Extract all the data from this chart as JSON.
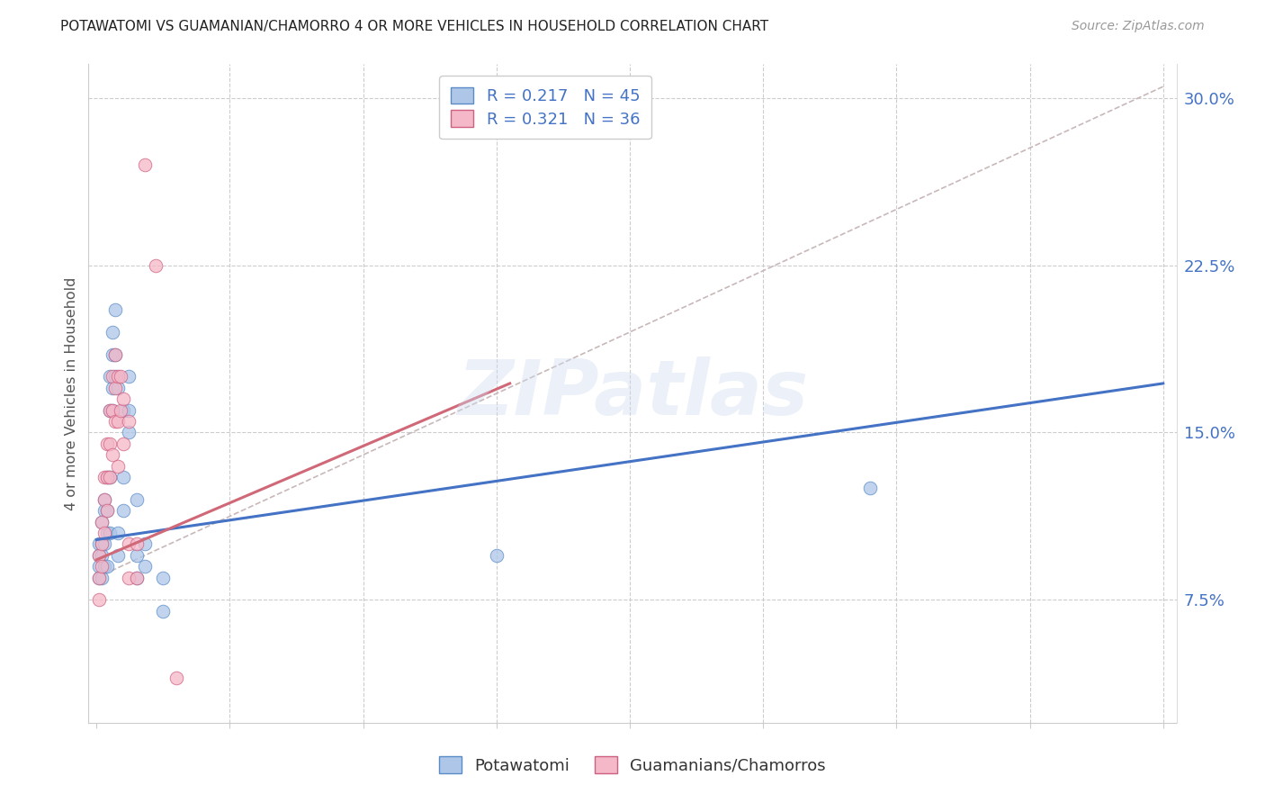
{
  "title": "POTAWATOMI VS GUAMANIAN/CHAMORRO 4 OR MORE VEHICLES IN HOUSEHOLD CORRELATION CHART",
  "source": "Source: ZipAtlas.com",
  "ylabel": "4 or more Vehicles in Household",
  "right_yticks": [
    "7.5%",
    "15.0%",
    "22.5%",
    "30.0%"
  ],
  "right_ytick_vals": [
    0.075,
    0.15,
    0.225,
    0.3
  ],
  "legend_blue_r": "R = 0.217",
  "legend_blue_n": "N = 45",
  "legend_pink_r": "R = 0.321",
  "legend_pink_n": "N = 36",
  "watermark": "ZIPatlas",
  "blue_color": "#aec6e8",
  "pink_color": "#f4b8c8",
  "blue_edge_color": "#5b8cc8",
  "pink_edge_color": "#d06080",
  "blue_line_color": "#4472c4",
  "pink_line_color": "#d06878",
  "dashed_line_color": "#c8b8b8",
  "blue_scatter": [
    [
      0.001,
      0.1
    ],
    [
      0.001,
      0.095
    ],
    [
      0.001,
      0.09
    ],
    [
      0.001,
      0.085
    ],
    [
      0.002,
      0.11
    ],
    [
      0.002,
      0.1
    ],
    [
      0.002,
      0.095
    ],
    [
      0.002,
      0.085
    ],
    [
      0.003,
      0.12
    ],
    [
      0.003,
      0.115
    ],
    [
      0.003,
      0.1
    ],
    [
      0.003,
      0.09
    ],
    [
      0.004,
      0.13
    ],
    [
      0.004,
      0.115
    ],
    [
      0.004,
      0.105
    ],
    [
      0.004,
      0.09
    ],
    [
      0.005,
      0.175
    ],
    [
      0.005,
      0.16
    ],
    [
      0.005,
      0.13
    ],
    [
      0.005,
      0.105
    ],
    [
      0.006,
      0.195
    ],
    [
      0.006,
      0.185
    ],
    [
      0.006,
      0.17
    ],
    [
      0.006,
      0.16
    ],
    [
      0.007,
      0.205
    ],
    [
      0.007,
      0.185
    ],
    [
      0.007,
      0.175
    ],
    [
      0.008,
      0.17
    ],
    [
      0.008,
      0.105
    ],
    [
      0.008,
      0.095
    ],
    [
      0.01,
      0.16
    ],
    [
      0.01,
      0.13
    ],
    [
      0.01,
      0.115
    ],
    [
      0.012,
      0.175
    ],
    [
      0.012,
      0.16
    ],
    [
      0.012,
      0.15
    ],
    [
      0.015,
      0.12
    ],
    [
      0.015,
      0.095
    ],
    [
      0.015,
      0.085
    ],
    [
      0.018,
      0.1
    ],
    [
      0.018,
      0.09
    ],
    [
      0.025,
      0.085
    ],
    [
      0.025,
      0.07
    ],
    [
      0.15,
      0.095
    ],
    [
      0.29,
      0.125
    ]
  ],
  "pink_scatter": [
    [
      0.001,
      0.095
    ],
    [
      0.001,
      0.085
    ],
    [
      0.001,
      0.075
    ],
    [
      0.002,
      0.11
    ],
    [
      0.002,
      0.1
    ],
    [
      0.002,
      0.09
    ],
    [
      0.003,
      0.13
    ],
    [
      0.003,
      0.12
    ],
    [
      0.003,
      0.105
    ],
    [
      0.004,
      0.145
    ],
    [
      0.004,
      0.13
    ],
    [
      0.004,
      0.115
    ],
    [
      0.005,
      0.16
    ],
    [
      0.005,
      0.145
    ],
    [
      0.005,
      0.13
    ],
    [
      0.006,
      0.175
    ],
    [
      0.006,
      0.16
    ],
    [
      0.006,
      0.14
    ],
    [
      0.007,
      0.185
    ],
    [
      0.007,
      0.17
    ],
    [
      0.007,
      0.155
    ],
    [
      0.008,
      0.175
    ],
    [
      0.008,
      0.155
    ],
    [
      0.008,
      0.135
    ],
    [
      0.009,
      0.175
    ],
    [
      0.009,
      0.16
    ],
    [
      0.01,
      0.165
    ],
    [
      0.01,
      0.145
    ],
    [
      0.012,
      0.155
    ],
    [
      0.012,
      0.1
    ],
    [
      0.012,
      0.085
    ],
    [
      0.015,
      0.1
    ],
    [
      0.015,
      0.085
    ],
    [
      0.018,
      0.27
    ],
    [
      0.022,
      0.225
    ],
    [
      0.03,
      0.04
    ]
  ],
  "xmin": -0.003,
  "xmax": 0.405,
  "ymin": 0.02,
  "ymax": 0.315,
  "blue_trend_x": [
    0.0,
    0.4
  ],
  "blue_trend_y": [
    0.102,
    0.172
  ],
  "pink_trend_x": [
    0.0,
    0.155
  ],
  "pink_trend_y": [
    0.093,
    0.172
  ],
  "dashed_trend_x": [
    0.0,
    0.4
  ],
  "dashed_trend_y": [
    0.085,
    0.305
  ]
}
